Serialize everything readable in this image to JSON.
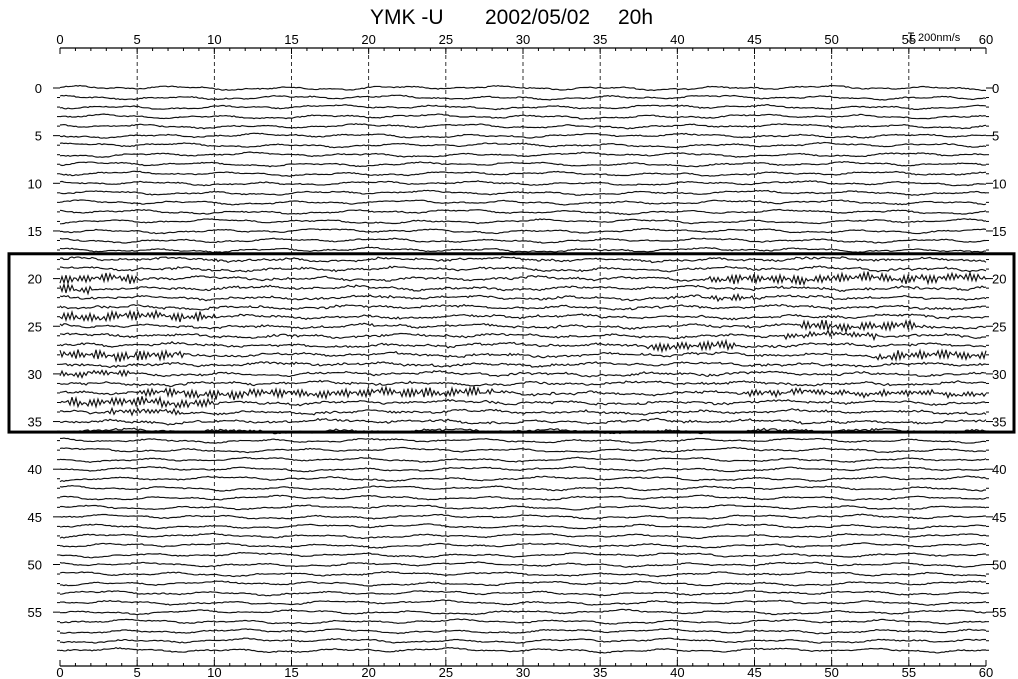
{
  "chart_data": {
    "type": "line",
    "title": "YMK -U",
    "date": "2002/05/02",
    "hour": "20h",
    "scale_label": "200nm/s",
    "x_axis": {
      "range": [
        0,
        60
      ],
      "tick_step": 5,
      "tick_labels": [
        "0",
        "5",
        "10",
        "15",
        "20",
        "25",
        "30",
        "35",
        "40",
        "45",
        "50",
        "55",
        "60"
      ]
    },
    "y_axis": {
      "range": [
        0,
        60
      ],
      "inverted": true,
      "tick_step": 5,
      "tick_labels": [
        "0",
        "5",
        "10",
        "15",
        "20",
        "25",
        "30",
        "35",
        "40",
        "45",
        "50",
        "55"
      ]
    },
    "traces": {
      "count": 60,
      "unit": "minute"
    },
    "grid": {
      "vertical": "dashed",
      "every": 5
    },
    "highlight_box": {
      "y_range": [
        17.5,
        36
      ]
    },
    "active_segments": [
      {
        "trace": 20,
        "x": [
          0,
          5
        ],
        "level": "high"
      },
      {
        "trace": 20,
        "x": [
          42,
          60
        ],
        "level": "high"
      },
      {
        "trace": 21,
        "x": [
          0,
          2
        ],
        "level": "high"
      },
      {
        "trace": 22,
        "x": [
          42,
          45
        ],
        "level": "medium"
      },
      {
        "trace": 24,
        "x": [
          0,
          10
        ],
        "level": "high"
      },
      {
        "trace": 25,
        "x": [
          48,
          56
        ],
        "level": "high"
      },
      {
        "trace": 26,
        "x": [
          47,
          53
        ],
        "level": "medium"
      },
      {
        "trace": 27,
        "x": [
          38,
          44
        ],
        "level": "high"
      },
      {
        "trace": 28,
        "x": [
          0,
          8
        ],
        "level": "high"
      },
      {
        "trace": 28,
        "x": [
          53,
          60
        ],
        "level": "high"
      },
      {
        "trace": 30,
        "x": [
          0,
          5
        ],
        "level": "medium"
      },
      {
        "trace": 32,
        "x": [
          5,
          28
        ],
        "level": "high"
      },
      {
        "trace": 32,
        "x": [
          44,
          60
        ],
        "level": "medium"
      },
      {
        "trace": 33,
        "x": [
          0,
          10
        ],
        "level": "high"
      },
      {
        "trace": 34,
        "x": [
          3,
          8
        ],
        "level": "medium"
      }
    ]
  }
}
